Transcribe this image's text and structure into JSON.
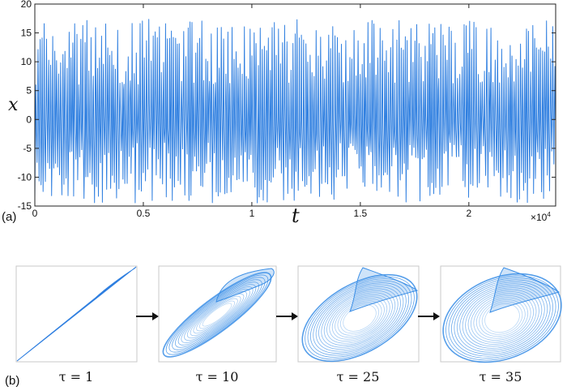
{
  "figure": {
    "panel_a_label": "(a)",
    "panel_b_label": "(b)",
    "x_axis_label": "t",
    "y_axis_label": "x",
    "x_multiplier": "×10",
    "x_multiplier_exp": "4",
    "line_color": "#2f7fe0",
    "attractor_color": "#3a8ee6"
  },
  "chart_data": [
    {
      "type": "line",
      "title": "",
      "xlabel": "t",
      "ylabel": "x",
      "xlim": [
        0,
        24000
      ],
      "ylim": [
        -15,
        20
      ],
      "x_scale_note": "×10^4",
      "x_ticks": [
        "0",
        "0.5",
        "1",
        "1.5",
        "2"
      ],
      "x_tick_values": [
        0,
        5000,
        10000,
        15000,
        20000
      ],
      "y_ticks": [
        "20",
        "15",
        "10",
        "5",
        "0",
        "-5",
        "-10",
        "-15"
      ],
      "y_tick_values": [
        20,
        15,
        10,
        5,
        0,
        -5,
        -10,
        -15
      ],
      "grid": false,
      "legend": null,
      "series": [
        {
          "name": "x(t)",
          "description": "Chaotic oscillation; peaks between ~6 and ~17.5, troughs between ~-4 and ~-14.5",
          "approx_max": 17.5,
          "approx_min": -14.5
        }
      ]
    },
    {
      "type": "scatter",
      "title": "Delay embeddings (phase portraits)",
      "panels": [
        {
          "label": "τ = 1",
          "tau": 1,
          "shape": "thin diagonal line"
        },
        {
          "label": "τ = 10",
          "tau": 10,
          "shape": "narrow elongated loop"
        },
        {
          "label": "τ = 25",
          "tau": 25,
          "shape": "open attractor with fold"
        },
        {
          "label": "τ = 35",
          "tau": 35,
          "shape": "wide open attractor with fold"
        }
      ]
    }
  ],
  "panels_b": [
    {
      "tau_label": "τ = 1"
    },
    {
      "tau_label": "τ = 10"
    },
    {
      "tau_label": "τ = 25"
    },
    {
      "tau_label": "τ = 35"
    }
  ]
}
